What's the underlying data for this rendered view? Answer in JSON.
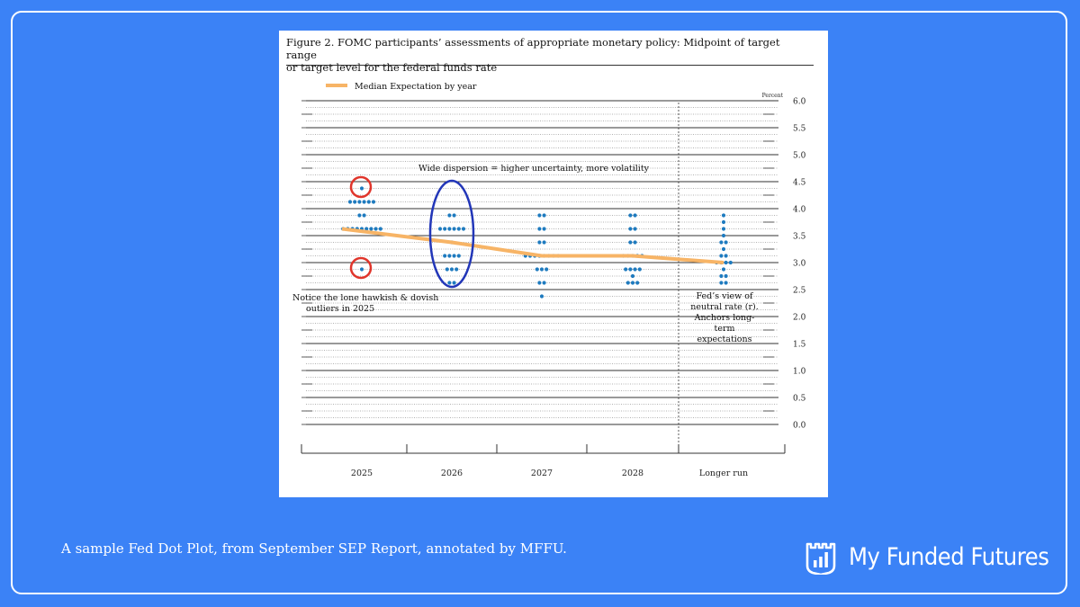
{
  "figure": {
    "title_line1": "Figure 2. FOMC participants’ assessments of appropriate monetary policy: Midpoint of target range",
    "title_line2": "or target level for the federal funds rate"
  },
  "caption": "A sample Fed Dot Plot, from September SEP Report, annotated by MFFU.",
  "brand": {
    "name": "My Funded Futures",
    "logo_icon": "castle-chart-icon"
  },
  "colors": {
    "background": "#3b82f6",
    "dot": "#1f7bbf",
    "median": "#f7b466",
    "hawk_dove_circle": "#e0352b",
    "dispersion_ellipse": "#2236b8"
  },
  "annotations": {
    "dispersion": "Wide dispersion = higher uncertainty, more volatility",
    "outliers_line1": "Notice the lone hawkish & dovish",
    "outliers_line2": "outliers in 2025",
    "neutral_line1": "Fed’s view of",
    "neutral_line2": "neutral rate (r).",
    "neutral_line3": "Anchors long-",
    "neutral_line4": "term",
    "neutral_line5": "expectations"
  },
  "chart_data": {
    "type": "scatter",
    "title": "Figure 2. FOMC participants’ assessments of appropriate monetary policy: Midpoint of target range or target level for the federal funds rate",
    "ylabel": "Percent",
    "ylim": [
      0,
      6
    ],
    "yticks": [
      "6.0",
      "5.5",
      "5.0",
      "4.5",
      "4.0",
      "3.5",
      "3.0",
      "2.5",
      "2.0",
      "1.5",
      "1.0",
      "0.5",
      "0.0"
    ],
    "ytick_values": [
      6.0,
      5.5,
      5.0,
      4.5,
      4.0,
      3.5,
      3.0,
      2.5,
      2.0,
      1.5,
      1.0,
      0.5,
      0.0
    ],
    "categories": [
      "2025",
      "2026",
      "2027",
      "2028",
      "Longer run"
    ],
    "legend": {
      "label": "Median Expectation by year",
      "position": "top-left"
    },
    "dots": [
      {
        "category": "2025",
        "counts": [
          [
            4.375,
            1
          ],
          [
            4.125,
            6
          ],
          [
            3.875,
            2
          ],
          [
            3.625,
            9
          ],
          [
            2.875,
            1
          ]
        ]
      },
      {
        "category": "2026",
        "counts": [
          [
            3.875,
            2
          ],
          [
            3.625,
            6
          ],
          [
            3.375,
            1
          ],
          [
            3.125,
            4
          ],
          [
            2.875,
            3
          ],
          [
            2.625,
            2
          ]
        ]
      },
      {
        "category": "2027",
        "counts": [
          [
            3.875,
            2
          ],
          [
            3.625,
            2
          ],
          [
            3.375,
            2
          ],
          [
            3.125,
            8
          ],
          [
            2.875,
            3
          ],
          [
            2.625,
            2
          ],
          [
            2.375,
            1
          ]
        ]
      },
      {
        "category": "2028",
        "counts": [
          [
            3.875,
            2
          ],
          [
            3.625,
            2
          ],
          [
            3.375,
            2
          ],
          [
            3.125,
            5
          ],
          [
            2.875,
            4
          ],
          [
            2.75,
            1
          ],
          [
            2.625,
            3
          ]
        ]
      },
      {
        "category": "Longer run",
        "counts": [
          [
            3.875,
            1
          ],
          [
            3.75,
            1
          ],
          [
            3.625,
            1
          ],
          [
            3.5,
            1
          ],
          [
            3.375,
            2
          ],
          [
            3.25,
            1
          ],
          [
            3.125,
            2
          ],
          [
            3.0,
            4
          ],
          [
            2.875,
            1
          ],
          [
            2.75,
            2
          ],
          [
            2.625,
            2
          ]
        ]
      }
    ],
    "median": {
      "name": "Median Expectation by year",
      "values": [
        3.625,
        3.375,
        3.125,
        3.125,
        3.0
      ]
    }
  }
}
